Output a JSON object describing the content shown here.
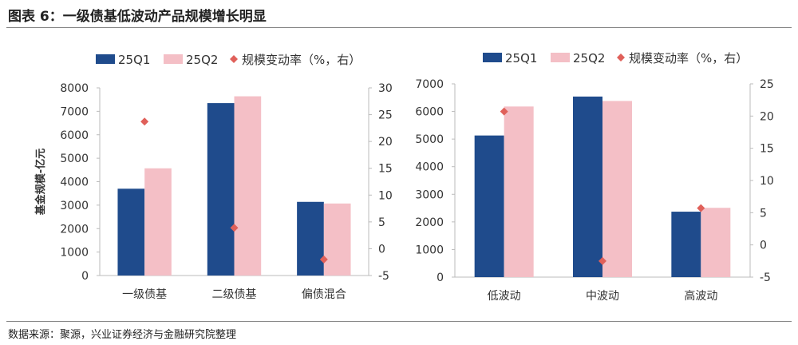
{
  "title": "图表 6：一级债基低波动产品规模增长明显",
  "source": "数据来源：聚源，兴业证券经济与金融研究院整理",
  "colors": {
    "q1": "#1f4b8c",
    "q2": "#f4bfc6",
    "change": "#e0605a"
  },
  "chart_data": [
    {
      "type": "bar",
      "categories": [
        "一级债基",
        "二级债基",
        "偏债混合"
      ],
      "ylabel": "基金规模-亿元",
      "ylim": [
        0,
        8000
      ],
      "yticks": [
        0,
        1000,
        2000,
        3000,
        4000,
        5000,
        6000,
        7000,
        8000
      ],
      "y2lim": [
        -5,
        30
      ],
      "y2ticks": [
        -5,
        0,
        5,
        10,
        15,
        20,
        25,
        30
      ],
      "legend_position": "top",
      "series": [
        {
          "name": "25Q1",
          "type": "bar",
          "axis": "left",
          "values": [
            3700,
            7350,
            3140
          ]
        },
        {
          "name": "25Q2",
          "type": "bar",
          "axis": "left",
          "values": [
            4570,
            7640,
            3070
          ]
        },
        {
          "name": "规模变动率（%，右）",
          "type": "scatter",
          "axis": "right",
          "values": [
            23.7,
            3.9,
            -2.0
          ]
        }
      ]
    },
    {
      "type": "bar",
      "categories": [
        "低波动",
        "中波动",
        "高波动"
      ],
      "ylim": [
        0,
        7000
      ],
      "yticks": [
        0,
        1000,
        2000,
        3000,
        4000,
        5000,
        6000,
        7000
      ],
      "y2lim": [
        -5,
        25
      ],
      "y2ticks": [
        -5,
        0,
        5,
        10,
        15,
        20,
        25
      ],
      "legend_position": "top",
      "series": [
        {
          "name": "25Q1",
          "type": "bar",
          "axis": "left",
          "values": [
            5130,
            6540,
            2370
          ]
        },
        {
          "name": "25Q2",
          "type": "bar",
          "axis": "left",
          "values": [
            6180,
            6380,
            2510
          ]
        },
        {
          "name": "规模变动率（%，右）",
          "type": "scatter",
          "axis": "right",
          "values": [
            20.7,
            -2.5,
            5.7
          ]
        }
      ]
    }
  ]
}
